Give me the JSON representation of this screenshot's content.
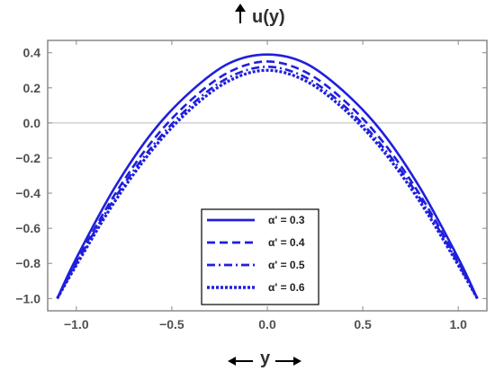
{
  "chart_data": {
    "type": "line",
    "title": "",
    "ylabel": "u(y)",
    "xlabel": "y",
    "xlim": [
      -1.15,
      1.15
    ],
    "ylim": [
      -1.07,
      0.47
    ],
    "x_ticks": [
      -1.0,
      -0.5,
      0.0,
      0.5,
      1.0
    ],
    "x_tick_labels": [
      "-1.0",
      "-0.5",
      "0.0",
      "0.5",
      "1.0"
    ],
    "y_ticks": [
      0.4,
      0.2,
      0.0,
      -0.2,
      -0.4,
      -0.6,
      -0.8,
      -1.0
    ],
    "y_tick_labels": [
      "0.4",
      "0.2",
      "0.0",
      "-0.2",
      "-0.4",
      "-0.6",
      "-0.8",
      "-1.0"
    ],
    "grid": false,
    "zero_line": true,
    "legend_position": "bottom-center",
    "line_color": "#1f1fdd",
    "x": [
      -1.1,
      -1.0,
      -0.8,
      -0.6,
      -0.4,
      -0.2,
      0.0,
      0.2,
      0.4,
      0.6,
      0.8,
      1.0,
      1.1
    ],
    "series": [
      {
        "name": "α' = 0.3",
        "dash": "solid",
        "values": [
          -1.0,
          -0.77,
          -0.37,
          -0.05,
          0.18,
          0.34,
          0.39,
          0.34,
          0.18,
          -0.05,
          -0.37,
          -0.77,
          -1.0
        ]
      },
      {
        "name": "α' = 0.4",
        "dash": "dashed",
        "values": [
          -1.0,
          -0.79,
          -0.41,
          -0.1,
          0.13,
          0.29,
          0.35,
          0.29,
          0.13,
          -0.1,
          -0.41,
          -0.79,
          -1.0
        ]
      },
      {
        "name": "α' = 0.5",
        "dash": "dashdot",
        "values": [
          -1.0,
          -0.8,
          -0.43,
          -0.13,
          0.1,
          0.26,
          0.32,
          0.26,
          0.1,
          -0.13,
          -0.43,
          -0.8,
          -1.0
        ]
      },
      {
        "name": "α' = 0.6",
        "dash": "dotted",
        "values": [
          -1.0,
          -0.81,
          -0.45,
          -0.15,
          0.08,
          0.24,
          0.3,
          0.24,
          0.08,
          -0.15,
          -0.45,
          -0.81,
          -1.0
        ]
      }
    ]
  }
}
